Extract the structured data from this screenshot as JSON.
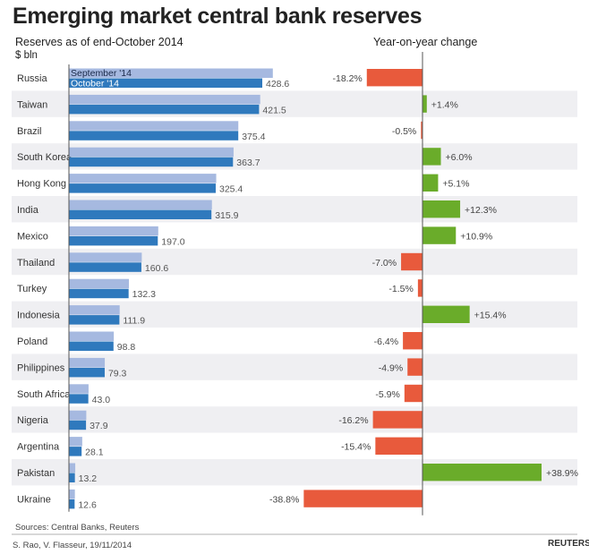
{
  "header": {
    "title": "Emerging market central bank reserves",
    "subtitle": "Reserves as of end-October 2014",
    "unit": "$ bln",
    "yoy_title": "Year-on-year change"
  },
  "footer": {
    "sources": "Sources: Central Banks, Reuters",
    "credit": "S. Rao, V. Flasseur, 19/11/2014",
    "logo": "REUTERS"
  },
  "colors": {
    "september": "#a6b9e0",
    "october": "#2f79bd",
    "positive": "#6aac2a",
    "negative": "#e85a3c",
    "stripe": "#efeff2"
  },
  "chart_data": [
    {
      "type": "bar",
      "orientation": "horizontal",
      "categories": [
        "Russia",
        "Taiwan",
        "Brazil",
        "South Korea",
        "Hong Kong",
        "India",
        "Mexico",
        "Thailand",
        "Turkey",
        "Indonesia",
        "Poland",
        "Philippines",
        "South Africa",
        "Nigeria",
        "Argentina",
        "Pakistan",
        "Ukraine"
      ],
      "series": [
        {
          "name": "September '14",
          "values": [
            452.0,
            424.0,
            375.5,
            365.0,
            326.5,
            317.0,
            198.0,
            161.5,
            133.0,
            112.5,
            99.5,
            79.5,
            43.5,
            38.5,
            29.5,
            14.0,
            13.2
          ]
        },
        {
          "name": "October '14",
          "values": [
            428.6,
            421.5,
            375.4,
            363.7,
            325.4,
            315.9,
            197.0,
            160.6,
            132.3,
            111.9,
            98.8,
            79.3,
            43.0,
            37.9,
            28.1,
            13.2,
            12.6
          ],
          "labels": [
            "428.6",
            "421.5",
            "375.4",
            "363.7",
            "325.4",
            "315.9",
            "197.0",
            "160.6",
            "132.3",
            "111.9",
            "98.8",
            "79.3",
            "43.0",
            "37.9",
            "28.1",
            "13.2",
            "12.6"
          ]
        }
      ],
      "legend": "inside-top-left",
      "xlim": [
        0,
        470
      ]
    },
    {
      "type": "bar",
      "orientation": "horizontal",
      "categories": [
        "Russia",
        "Taiwan",
        "Brazil",
        "South Korea",
        "Hong Kong",
        "India",
        "Mexico",
        "Thailand",
        "Turkey",
        "Indonesia",
        "Poland",
        "Philippines",
        "South Africa",
        "Nigeria",
        "Argentina",
        "Pakistan",
        "Ukraine"
      ],
      "values": [
        -18.2,
        1.4,
        -0.5,
        6.0,
        5.1,
        12.3,
        10.9,
        -7.0,
        -1.5,
        15.4,
        -6.4,
        -4.9,
        -5.9,
        -16.2,
        -15.4,
        38.9,
        -38.8
      ],
      "labels": [
        "-18.2%",
        "+1.4%",
        "-0.5%",
        "+6.0%",
        "+5.1%",
        "+12.3%",
        "+10.9%",
        "-7.0%",
        "-1.5%",
        "+15.4%",
        "-6.4%",
        "-4.9%",
        "-5.9%",
        "-16.2%",
        "-15.4%",
        "+38.9%",
        "-38.8%"
      ],
      "xlim": [
        -40,
        40
      ]
    }
  ]
}
